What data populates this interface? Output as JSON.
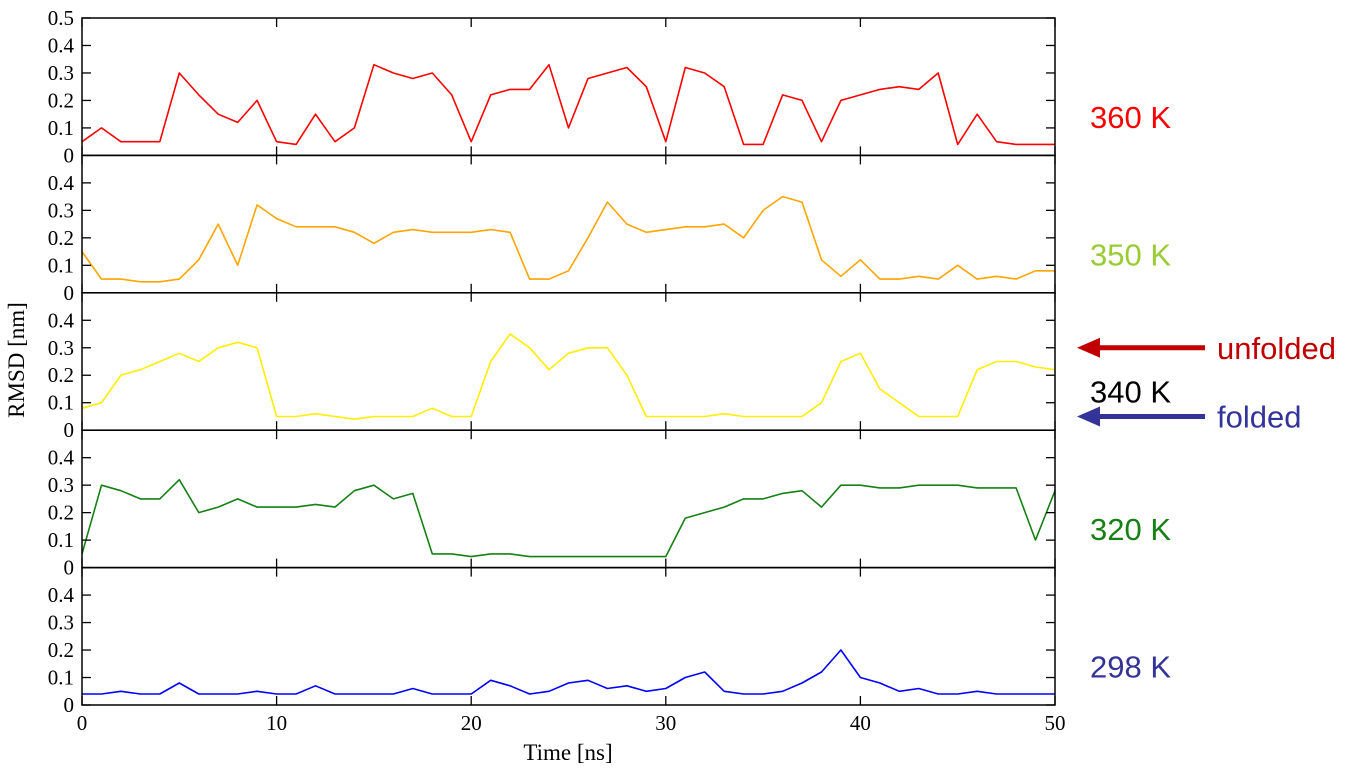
{
  "chart_data": {
    "type": "line",
    "xlabel": "Time [ns]",
    "ylabel": "RMSD [nm]",
    "xlim": [
      0,
      50
    ],
    "x_ticks": [
      "0",
      "10",
      "20",
      "30",
      "40",
      "50"
    ],
    "grid": false,
    "panels": [
      {
        "label": "360 K",
        "series_color": "#ff0000",
        "label_color": "#ff0000",
        "ylim": [
          0,
          0.5
        ],
        "y_ticks": [
          "0",
          "0.1",
          "0.2",
          "0.3",
          "0.4",
          "0.5"
        ],
        "x": [
          0,
          1,
          2,
          3,
          4,
          5,
          6,
          7,
          8,
          9,
          10,
          11,
          12,
          13,
          14,
          15,
          16,
          17,
          18,
          19,
          20,
          21,
          22,
          23,
          24,
          25,
          26,
          27,
          28,
          29,
          30,
          31,
          32,
          33,
          34,
          35,
          36,
          37,
          38,
          39,
          40,
          41,
          42,
          43,
          44,
          45,
          46,
          47,
          48,
          49,
          50
        ],
        "values": [
          0.05,
          0.1,
          0.05,
          0.05,
          0.05,
          0.3,
          0.22,
          0.15,
          0.12,
          0.2,
          0.05,
          0.04,
          0.15,
          0.05,
          0.1,
          0.33,
          0.3,
          0.28,
          0.3,
          0.22,
          0.05,
          0.22,
          0.24,
          0.24,
          0.33,
          0.1,
          0.28,
          0.3,
          0.32,
          0.25,
          0.05,
          0.32,
          0.3,
          0.25,
          0.04,
          0.04,
          0.22,
          0.2,
          0.05,
          0.2,
          0.22,
          0.24,
          0.25,
          0.24,
          0.3,
          0.04,
          0.15,
          0.05,
          0.04,
          0.04,
          0.04
        ]
      },
      {
        "label": "350 K",
        "series_color": "#ffa500",
        "label_color": "#99cc33",
        "ylim": [
          0,
          0.5
        ],
        "y_ticks": [
          "0",
          "0.1",
          "0.2",
          "0.3",
          "0.4"
        ],
        "x": [
          0,
          1,
          2,
          3,
          4,
          5,
          6,
          7,
          8,
          9,
          10,
          11,
          12,
          13,
          14,
          15,
          16,
          17,
          18,
          19,
          20,
          21,
          22,
          23,
          24,
          25,
          26,
          27,
          28,
          29,
          30,
          31,
          32,
          33,
          34,
          35,
          36,
          37,
          38,
          39,
          40,
          41,
          42,
          43,
          44,
          45,
          46,
          47,
          48,
          49,
          50
        ],
        "values": [
          0.15,
          0.05,
          0.05,
          0.04,
          0.04,
          0.05,
          0.12,
          0.25,
          0.1,
          0.32,
          0.27,
          0.24,
          0.24,
          0.24,
          0.22,
          0.18,
          0.22,
          0.23,
          0.22,
          0.22,
          0.22,
          0.23,
          0.22,
          0.05,
          0.05,
          0.08,
          0.2,
          0.33,
          0.25,
          0.22,
          0.23,
          0.24,
          0.24,
          0.25,
          0.2,
          0.3,
          0.35,
          0.33,
          0.12,
          0.06,
          0.12,
          0.05,
          0.05,
          0.06,
          0.05,
          0.1,
          0.05,
          0.06,
          0.05,
          0.08,
          0.08
        ]
      },
      {
        "label": "340 K",
        "series_color": "#ffee00",
        "label_color": "#000000",
        "ylim": [
          0,
          0.5
        ],
        "y_ticks": [
          "0",
          "0.1",
          "0.2",
          "0.3",
          "0.4"
        ],
        "x": [
          0,
          1,
          2,
          3,
          4,
          5,
          6,
          7,
          8,
          9,
          10,
          11,
          12,
          13,
          14,
          15,
          16,
          17,
          18,
          19,
          20,
          21,
          22,
          23,
          24,
          25,
          26,
          27,
          28,
          29,
          30,
          31,
          32,
          33,
          34,
          35,
          36,
          37,
          38,
          39,
          40,
          41,
          42,
          43,
          44,
          45,
          46,
          47,
          48,
          49,
          50
        ],
        "values": [
          0.08,
          0.1,
          0.2,
          0.22,
          0.25,
          0.28,
          0.25,
          0.3,
          0.32,
          0.3,
          0.05,
          0.05,
          0.06,
          0.05,
          0.04,
          0.05,
          0.05,
          0.05,
          0.08,
          0.05,
          0.05,
          0.25,
          0.35,
          0.3,
          0.22,
          0.28,
          0.3,
          0.3,
          0.2,
          0.05,
          0.05,
          0.05,
          0.05,
          0.06,
          0.05,
          0.05,
          0.05,
          0.05,
          0.1,
          0.25,
          0.28,
          0.15,
          0.1,
          0.05,
          0.05,
          0.05,
          0.22,
          0.25,
          0.25,
          0.23,
          0.22
        ]
      },
      {
        "label": "320 K",
        "series_color": "#168016",
        "label_color": "#168016",
        "ylim": [
          0,
          0.5
        ],
        "y_ticks": [
          "0",
          "0.1",
          "0.2",
          "0.3",
          "0.4"
        ],
        "x": [
          0,
          1,
          2,
          3,
          4,
          5,
          6,
          7,
          8,
          9,
          10,
          11,
          12,
          13,
          14,
          15,
          16,
          17,
          18,
          19,
          20,
          21,
          22,
          23,
          24,
          25,
          26,
          27,
          28,
          29,
          30,
          31,
          32,
          33,
          34,
          35,
          36,
          37,
          38,
          39,
          40,
          41,
          42,
          43,
          44,
          45,
          46,
          47,
          48,
          49,
          50
        ],
        "values": [
          0.05,
          0.3,
          0.28,
          0.25,
          0.25,
          0.32,
          0.2,
          0.22,
          0.25,
          0.22,
          0.22,
          0.22,
          0.23,
          0.22,
          0.28,
          0.3,
          0.25,
          0.27,
          0.05,
          0.05,
          0.04,
          0.05,
          0.05,
          0.04,
          0.04,
          0.04,
          0.04,
          0.04,
          0.04,
          0.04,
          0.04,
          0.18,
          0.2,
          0.22,
          0.25,
          0.25,
          0.27,
          0.28,
          0.22,
          0.3,
          0.3,
          0.29,
          0.29,
          0.3,
          0.3,
          0.3,
          0.29,
          0.29,
          0.29,
          0.1,
          0.28
        ]
      },
      {
        "label": "298 K",
        "series_color": "#0000ff",
        "label_color": "#333399",
        "ylim": [
          0,
          0.5
        ],
        "y_ticks": [
          "0",
          "0.1",
          "0.2",
          "0.3",
          "0.4"
        ],
        "x": [
          0,
          1,
          2,
          3,
          4,
          5,
          6,
          7,
          8,
          9,
          10,
          11,
          12,
          13,
          14,
          15,
          16,
          17,
          18,
          19,
          20,
          21,
          22,
          23,
          24,
          25,
          26,
          27,
          28,
          29,
          30,
          31,
          32,
          33,
          34,
          35,
          36,
          37,
          38,
          39,
          40,
          41,
          42,
          43,
          44,
          45,
          46,
          47,
          48,
          49,
          50
        ],
        "values": [
          0.04,
          0.04,
          0.05,
          0.04,
          0.04,
          0.08,
          0.04,
          0.04,
          0.04,
          0.05,
          0.04,
          0.04,
          0.07,
          0.04,
          0.04,
          0.04,
          0.04,
          0.06,
          0.04,
          0.04,
          0.04,
          0.09,
          0.07,
          0.04,
          0.05,
          0.08,
          0.09,
          0.06,
          0.07,
          0.05,
          0.06,
          0.1,
          0.12,
          0.05,
          0.04,
          0.04,
          0.05,
          0.08,
          0.12,
          0.2,
          0.1,
          0.08,
          0.05,
          0.06,
          0.04,
          0.04,
          0.05,
          0.04,
          0.04,
          0.04,
          0.04
        ]
      }
    ],
    "annotations": [
      {
        "text": "unfolded",
        "color": "#c00000",
        "points_to_panel": 2,
        "points_to_value": 0.3
      },
      {
        "text": "folded",
        "color": "#333399",
        "points_to_panel": 2,
        "points_to_value": 0.05
      }
    ]
  }
}
